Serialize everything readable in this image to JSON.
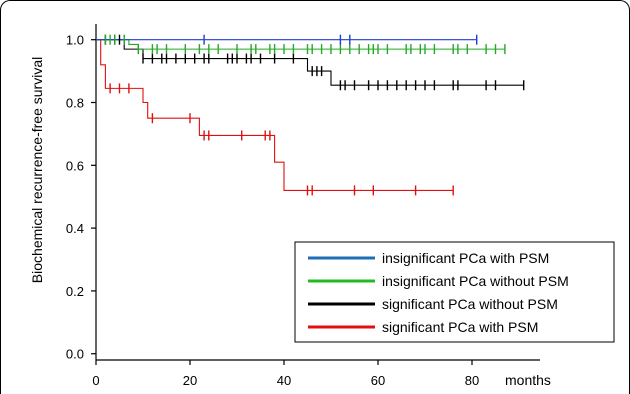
{
  "chart_data": {
    "type": "line",
    "title": "",
    "ylabel": "Biochemical recurrence-free survival",
    "xlabel": "months",
    "xlim": [
      0,
      92
    ],
    "ylim": [
      -0.02,
      1.05
    ],
    "x_ticks": [
      0,
      20,
      40,
      60,
      80
    ],
    "y_ticks": [
      0.0,
      0.2,
      0.4,
      0.6,
      0.8,
      1.0
    ],
    "y_tick_labels": [
      "0.0",
      "0.2",
      "0.4",
      "0.6",
      "0.8",
      "1.0"
    ],
    "grid": false,
    "legend_position": "bottom-right",
    "step": true,
    "series": [
      {
        "name": "insignificant PCa with PSM",
        "color": "#1f3fd0",
        "legend_color": "#1f6fb5",
        "x": [
          0,
          81
        ],
        "y": [
          1.0,
          1.0
        ],
        "censored": [
          23,
          52,
          54,
          81
        ]
      },
      {
        "name": "insignificant PCa without PSM",
        "color": "#22aa22",
        "legend_color": "#22bb22",
        "x": [
          0,
          7,
          9,
          87
        ],
        "y": [
          1.0,
          0.985,
          0.97,
          0.97
        ],
        "censored": [
          2,
          3,
          4,
          6,
          9,
          12,
          13,
          15,
          19,
          22,
          24,
          26,
          30,
          33,
          34,
          37,
          38,
          40,
          42,
          45,
          46,
          48,
          50,
          52,
          54,
          56,
          58,
          59,
          60,
          62,
          66,
          67,
          69,
          70,
          72,
          76,
          77,
          79,
          83,
          85,
          87
        ]
      },
      {
        "name": "significant PCa without PSM",
        "color": "#000000",
        "legend_color": "#000000",
        "x": [
          0,
          6,
          10,
          45,
          48,
          50,
          91
        ],
        "y": [
          1.0,
          0.97,
          0.94,
          0.9,
          0.9,
          0.855,
          0.855
        ],
        "censored": [
          2,
          4,
          5,
          10,
          12,
          14,
          15,
          17,
          19,
          21,
          23,
          24,
          28,
          29,
          30,
          32,
          33,
          35,
          38,
          42,
          46,
          47,
          48,
          52,
          53,
          55,
          58,
          60,
          62,
          64,
          66,
          68,
          70,
          72,
          76,
          77,
          83,
          85,
          91
        ]
      },
      {
        "name": "significant PCa with PSM",
        "color": "#e01010",
        "legend_color": "#e01010",
        "x": [
          0,
          1,
          2,
          10,
          11,
          20,
          22,
          38,
          40,
          76
        ],
        "y": [
          1.0,
          0.92,
          0.845,
          0.8,
          0.75,
          0.75,
          0.695,
          0.61,
          0.52,
          0.52
        ],
        "censored": [
          3,
          5,
          7,
          12,
          20,
          23,
          24,
          31,
          36,
          37,
          45,
          46,
          55,
          59,
          68,
          76
        ]
      }
    ]
  }
}
